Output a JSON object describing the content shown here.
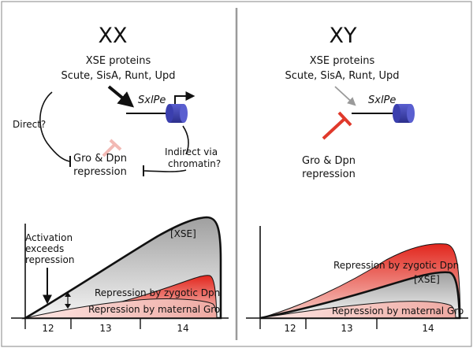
{
  "left_panel": {
    "title": "XX",
    "xse_heading": "XSE proteins",
    "xse_list": "Scute, SisA, Runt, Upd",
    "promoter": "SxlPe",
    "direct_label": "Direct?",
    "repression_line1": "Gro & Dpn",
    "repression_line2": "repression",
    "indirect_line1": "Indirect via",
    "indirect_line2": "chromatin?"
  },
  "right_panel": {
    "title": "XY",
    "xse_heading": "XSE proteins",
    "xse_list": "Scute, SisA, Runt, Upd",
    "promoter": "SxlPe",
    "repression_line1": "Gro & Dpn",
    "repression_line2": "repression"
  },
  "left_graph": {
    "activation_line1": "Activation",
    "activation_line2": "exceeds",
    "activation_line3": "repression",
    "xse_curve_label": "[XSE]",
    "zygotic_label": "Repression by zygotic Dpn",
    "maternal_label": "Repression by maternal Gro",
    "cycles": [
      "12",
      "13",
      "14"
    ]
  },
  "right_graph": {
    "zygotic_label": "Repression by zygotic Dpn",
    "xse_curve_label": "[XSE]",
    "maternal_label": "Repression by maternal Gro",
    "cycles": [
      "12",
      "13",
      "14"
    ]
  },
  "colors": {
    "promoter_cylinder": "#3b3fae",
    "repression_red": "#e0392b",
    "repression_pink": "#f2b9b4",
    "divider": "#9a9a9a"
  }
}
